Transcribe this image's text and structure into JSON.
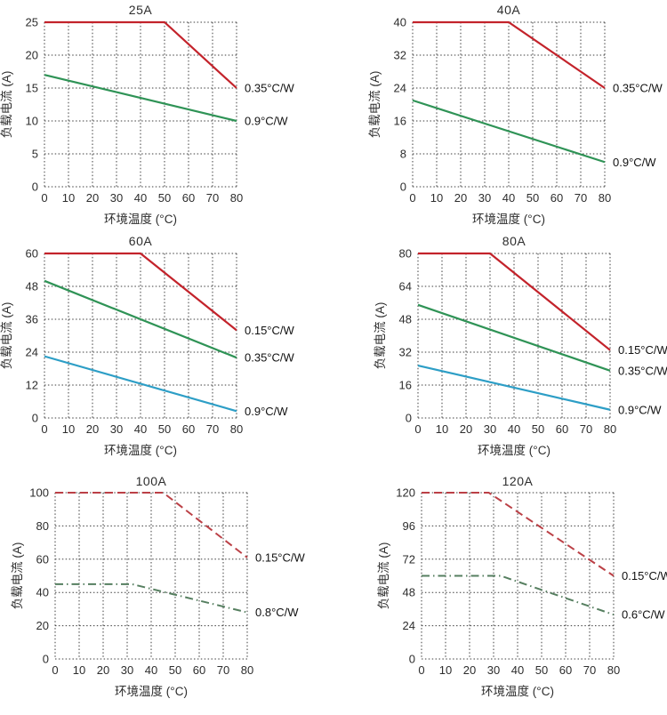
{
  "axis": {
    "xlabel": "环境温度 (°C)",
    "ylabel": "负载电流 (A)",
    "xlim": [
      0,
      80
    ],
    "x_ticks": [
      0,
      10,
      20,
      30,
      40,
      50,
      60,
      70,
      80
    ]
  },
  "colors": {
    "red_solid": "#c3232b",
    "green_solid": "#2f9356",
    "blue_solid": "#2d9ec6",
    "red_dashed": "#bb4046",
    "green_dashdot": "#567f60",
    "grid": "#3d3d3d",
    "text": "#2d2d2d"
  },
  "chart_data": [
    {
      "type": "line",
      "title": "25A",
      "xlabel": "环境温度 (°C)",
      "ylabel": "负载电流 (A)",
      "xlim": [
        0,
        80
      ],
      "ylim": [
        0,
        25
      ],
      "yticks": [
        0,
        5,
        10,
        15,
        20,
        25
      ],
      "grid": true,
      "series": [
        {
          "name": "0.35°C/W",
          "color": "#c3232b",
          "style": "solid",
          "points": [
            [
              0,
              25
            ],
            [
              50,
              25
            ],
            [
              80,
              15
            ]
          ]
        },
        {
          "name": "0.9°C/W",
          "color": "#2f9356",
          "style": "solid",
          "points": [
            [
              0,
              17
            ],
            [
              80,
              10
            ]
          ]
        }
      ]
    },
    {
      "type": "line",
      "title": "40A",
      "xlabel": "环境温度 (°C)",
      "ylabel": "负载电流 (A)",
      "xlim": [
        0,
        80
      ],
      "ylim": [
        0,
        40
      ],
      "yticks": [
        0,
        8,
        16,
        24,
        32,
        40
      ],
      "grid": true,
      "series": [
        {
          "name": "0.35°C/W",
          "color": "#c3232b",
          "style": "solid",
          "points": [
            [
              0,
              40
            ],
            [
              40,
              40
            ],
            [
              80,
              24
            ]
          ]
        },
        {
          "name": "0.9°C/W",
          "color": "#2f9356",
          "style": "solid",
          "points": [
            [
              0,
              21
            ],
            [
              80,
              6
            ]
          ]
        }
      ]
    },
    {
      "type": "line",
      "title": "60A",
      "xlabel": "环境温度 (°C)",
      "ylabel": "负载电流 (A)",
      "xlim": [
        0,
        80
      ],
      "ylim": [
        0,
        60
      ],
      "yticks": [
        0,
        12,
        24,
        36,
        48,
        60
      ],
      "grid": true,
      "series": [
        {
          "name": "0.15°C/W",
          "color": "#c3232b",
          "style": "solid",
          "points": [
            [
              0,
              60
            ],
            [
              40,
              60
            ],
            [
              80,
              32
            ]
          ]
        },
        {
          "name": "0.35°C/W",
          "color": "#2f9356",
          "style": "solid",
          "points": [
            [
              0,
              50
            ],
            [
              80,
              22
            ]
          ]
        },
        {
          "name": "0.9°C/W",
          "color": "#2d9ec6",
          "style": "solid",
          "points": [
            [
              0,
              22.5
            ],
            [
              80,
              2.5
            ]
          ]
        }
      ]
    },
    {
      "type": "line",
      "title": "80A",
      "xlabel": "环境温度 (°C)",
      "ylabel": "负载电流 (A)",
      "xlim": [
        0,
        80
      ],
      "ylim": [
        0,
        80
      ],
      "yticks": [
        0,
        16,
        32,
        48,
        64,
        80
      ],
      "grid": true,
      "series": [
        {
          "name": "0.15°C/W",
          "color": "#c3232b",
          "style": "solid",
          "points": [
            [
              0,
              80
            ],
            [
              30,
              80
            ],
            [
              80,
              33
            ]
          ]
        },
        {
          "name": "0.35°C/W",
          "color": "#2f9356",
          "style": "solid",
          "points": [
            [
              0,
              55
            ],
            [
              80,
              23
            ]
          ]
        },
        {
          "name": "0.9°C/W",
          "color": "#2d9ec6",
          "style": "solid",
          "points": [
            [
              0,
              25.5
            ],
            [
              80,
              4
            ]
          ]
        }
      ]
    },
    {
      "type": "line",
      "title": "100A",
      "xlabel": "环境温度 (°C)",
      "ylabel": "负载电流 (A)",
      "xlim": [
        0,
        80
      ],
      "ylim": [
        0,
        100
      ],
      "yticks": [
        0,
        20,
        40,
        60,
        80,
        100
      ],
      "grid": true,
      "series": [
        {
          "name": "0.15°C/W",
          "color": "#bb4046",
          "style": "dashed",
          "points": [
            [
              0,
              100
            ],
            [
              45,
              100
            ],
            [
              80,
              61
            ]
          ]
        },
        {
          "name": "0.8°C/W",
          "color": "#567f60",
          "style": "dashdot",
          "points": [
            [
              0,
              45
            ],
            [
              32,
              45
            ],
            [
              80,
              28
            ]
          ]
        }
      ]
    },
    {
      "type": "line",
      "title": "120A",
      "xlabel": "环境温度 (°C)",
      "ylabel": "负载电流 (A)",
      "xlim": [
        0,
        80
      ],
      "ylim": [
        0,
        120
      ],
      "yticks": [
        0,
        24,
        48,
        72,
        96,
        120
      ],
      "grid": true,
      "series": [
        {
          "name": "0.15°C/W",
          "color": "#bb4046",
          "style": "dashed",
          "points": [
            [
              0,
              120
            ],
            [
              28,
              120
            ],
            [
              80,
              60
            ]
          ]
        },
        {
          "name": "0.6°C/W",
          "color": "#567f60",
          "style": "dashdot",
          "points": [
            [
              0,
              60
            ],
            [
              33,
              60
            ],
            [
              80,
              32
            ]
          ]
        }
      ]
    }
  ]
}
